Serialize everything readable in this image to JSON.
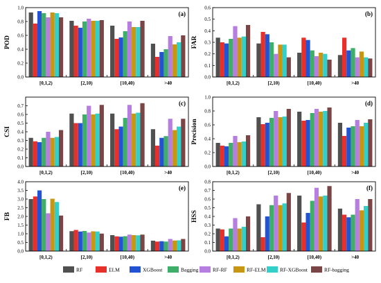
{
  "chart_data": [
    {
      "type": "bar",
      "panel_label": "(a)",
      "ylabel": "POD",
      "ylim": [
        0,
        1.0
      ],
      "yticks": [
        "0.0",
        "0.2",
        "0.4",
        "0.6",
        "0.8",
        "1.0"
      ],
      "categories": [
        "[0,1,2)",
        "[2,10)",
        "[10,40)",
        ">40"
      ],
      "series": [
        {
          "name": "RF",
          "values": [
            0.93,
            0.81,
            0.74,
            0.48
          ]
        },
        {
          "name": "ELM",
          "values": [
            0.77,
            0.74,
            0.55,
            0.29
          ]
        },
        {
          "name": "XGBoost",
          "values": [
            0.95,
            0.71,
            0.57,
            0.36
          ]
        },
        {
          "name": "Bagging",
          "values": [
            0.92,
            0.8,
            0.66,
            0.4
          ]
        },
        {
          "name": "RF-RF",
          "values": [
            0.86,
            0.84,
            0.8,
            0.59
          ]
        },
        {
          "name": "RF-ELM",
          "values": [
            0.93,
            0.81,
            0.72,
            0.47
          ]
        },
        {
          "name": "RF-XGBoost",
          "values": [
            0.92,
            0.81,
            0.72,
            0.5
          ]
        },
        {
          "name": "RF-bagging",
          "values": [
            0.86,
            0.82,
            0.81,
            0.6
          ]
        }
      ]
    },
    {
      "type": "bar",
      "panel_label": "(b)",
      "ylabel": "FAR",
      "ylim": [
        0,
        0.6
      ],
      "yticks": [
        "0.0",
        "0.1",
        "0.2",
        "0.3",
        "0.4",
        "0.5",
        "0.6"
      ],
      "categories": [
        "[0,1,2)",
        "[2,10)",
        "[10,40)",
        ">40"
      ],
      "series": [
        {
          "name": "RF",
          "values": [
            0.34,
            0.29,
            0.21,
            0.19
          ]
        },
        {
          "name": "ELM",
          "values": [
            0.3,
            0.39,
            0.34,
            0.34
          ]
        },
        {
          "name": "XGBoost",
          "values": [
            0.29,
            0.37,
            0.32,
            0.23
          ]
        },
        {
          "name": "Bagging",
          "values": [
            0.33,
            0.3,
            0.23,
            0.25
          ]
        },
        {
          "name": "RF-RF",
          "values": [
            0.44,
            0.2,
            0.18,
            0.17
          ]
        },
        {
          "name": "RF-ELM",
          "values": [
            0.34,
            0.28,
            0.21,
            0.22
          ]
        },
        {
          "name": "RF-XGBoost",
          "values": [
            0.35,
            0.28,
            0.2,
            0.17
          ]
        },
        {
          "name": "RF-bagging",
          "values": [
            0.45,
            0.17,
            0.15,
            0.16
          ]
        }
      ]
    },
    {
      "type": "bar",
      "panel_label": "(c)",
      "ylabel": "CSI",
      "ylim": [
        0,
        0.8
      ],
      "yticks": [
        "0.0",
        "0.1",
        "0.2",
        "0.3",
        "0.4",
        "0.5",
        "0.6",
        "0.7"
      ],
      "categories": [
        "[0,1,2)",
        "[2,10)",
        "[10,40)",
        ">40"
      ],
      "series": [
        {
          "name": "RF",
          "values": [
            0.33,
            0.61,
            0.61,
            0.43
          ]
        },
        {
          "name": "ELM",
          "values": [
            0.29,
            0.5,
            0.43,
            0.24
          ]
        },
        {
          "name": "XGBoost",
          "values": [
            0.28,
            0.5,
            0.46,
            0.33
          ]
        },
        {
          "name": "Bagging",
          "values": [
            0.33,
            0.6,
            0.56,
            0.35
          ]
        },
        {
          "name": "RF-RF",
          "values": [
            0.4,
            0.7,
            0.71,
            0.55
          ]
        },
        {
          "name": "RF-ELM",
          "values": [
            0.33,
            0.6,
            0.61,
            0.42
          ]
        },
        {
          "name": "RF-XGBoost",
          "values": [
            0.34,
            0.61,
            0.62,
            0.46
          ]
        },
        {
          "name": "RF-bagging",
          "values": [
            0.42,
            0.71,
            0.73,
            0.55
          ]
        }
      ]
    },
    {
      "type": "bar",
      "panel_label": "(d)",
      "ylabel": "Precision",
      "ylim": [
        0,
        1.0
      ],
      "yticks": [
        "0.0",
        "0.2",
        "0.4",
        "0.6",
        "0.8",
        "1.0"
      ],
      "categories": [
        "[0,1,2)",
        "[2,10)",
        "[10,40)",
        ">40"
      ],
      "series": [
        {
          "name": "RF",
          "values": [
            0.34,
            0.71,
            0.79,
            0.63
          ]
        },
        {
          "name": "ELM",
          "values": [
            0.3,
            0.61,
            0.66,
            0.44
          ]
        },
        {
          "name": "XGBoost",
          "values": [
            0.29,
            0.63,
            0.67,
            0.56
          ]
        },
        {
          "name": "Bagging",
          "values": [
            0.34,
            0.7,
            0.77,
            0.58
          ]
        },
        {
          "name": "RF-RF",
          "values": [
            0.44,
            0.8,
            0.83,
            0.67
          ]
        },
        {
          "name": "RF-ELM",
          "values": [
            0.35,
            0.71,
            0.79,
            0.58
          ]
        },
        {
          "name": "RF-XGBoost",
          "values": [
            0.36,
            0.72,
            0.8,
            0.63
          ]
        },
        {
          "name": "RF-bagging",
          "values": [
            0.45,
            0.83,
            0.85,
            0.68
          ]
        }
      ]
    },
    {
      "type": "bar",
      "panel_label": "(e)",
      "ylabel": "FB",
      "ylim": [
        0,
        4.0
      ],
      "yticks": [
        "0.0",
        "0.5",
        "1.0",
        "1.5",
        "2.0",
        "2.5",
        "3.0",
        "3.5",
        "4.0"
      ],
      "categories": [
        "[0,1,2)",
        "[2,10)",
        "[10,40)",
        ">40"
      ],
      "series": [
        {
          "name": "RF",
          "values": [
            3.0,
            1.15,
            0.92,
            0.6
          ]
        },
        {
          "name": "ELM",
          "values": [
            3.15,
            1.22,
            0.85,
            0.55
          ]
        },
        {
          "name": "XGBoost",
          "values": [
            3.5,
            1.13,
            0.83,
            0.57
          ]
        },
        {
          "name": "Bagging",
          "values": [
            3.0,
            1.16,
            0.86,
            0.55
          ]
        },
        {
          "name": "RF-RF",
          "values": [
            2.18,
            1.07,
            0.95,
            0.7
          ]
        },
        {
          "name": "RF-ELM",
          "values": [
            3.02,
            1.14,
            0.92,
            0.61
          ]
        },
        {
          "name": "RF-XGBoost",
          "values": [
            2.83,
            1.13,
            0.91,
            0.62
          ]
        },
        {
          "name": "RF-bagging",
          "values": [
            2.05,
            1.01,
            0.95,
            0.7
          ]
        }
      ]
    },
    {
      "type": "bar",
      "panel_label": "(f)",
      "ylabel": "HSS",
      "ylim": [
        0,
        0.8
      ],
      "yticks": [
        "0.0",
        "0.1",
        "0.2",
        "0.3",
        "0.4",
        "0.5",
        "0.6",
        "0.7",
        "0.8"
      ],
      "categories": [
        "[0,1,2)",
        "[2,10)",
        "[10,40)",
        ">40"
      ],
      "series": [
        {
          "name": "RF",
          "values": [
            0.26,
            0.54,
            0.64,
            0.49
          ]
        },
        {
          "name": "ELM",
          "values": [
            0.25,
            0.16,
            0.33,
            0.42
          ]
        },
        {
          "name": "XGBoost",
          "values": [
            0.17,
            0.4,
            0.44,
            0.39
          ]
        },
        {
          "name": "Bagging",
          "values": [
            0.26,
            0.53,
            0.58,
            0.42
          ]
        },
        {
          "name": "RF-RF",
          "values": [
            0.38,
            0.64,
            0.73,
            0.6
          ]
        },
        {
          "name": "RF-ELM",
          "values": [
            0.26,
            0.53,
            0.63,
            0.47
          ]
        },
        {
          "name": "RF-XGBoost",
          "values": [
            0.28,
            0.55,
            0.64,
            0.52
          ]
        },
        {
          "name": "RF-bagging",
          "values": [
            0.4,
            0.67,
            0.75,
            0.6
          ]
        }
      ]
    }
  ],
  "legend": [
    {
      "name": "RF",
      "color": "#505050"
    },
    {
      "name": "ELM",
      "color": "#e8302a"
    },
    {
      "name": "XGBoost",
      "color": "#2352d4"
    },
    {
      "name": "Bagging",
      "color": "#3daf68"
    },
    {
      "name": "RF-RF",
      "color": "#b57ee0"
    },
    {
      "name": "RF-ELM",
      "color": "#c99612"
    },
    {
      "name": "RF-XGBoost",
      "color": "#33cfc9"
    },
    {
      "name": "RF-bagging",
      "color": "#7b4545"
    }
  ]
}
